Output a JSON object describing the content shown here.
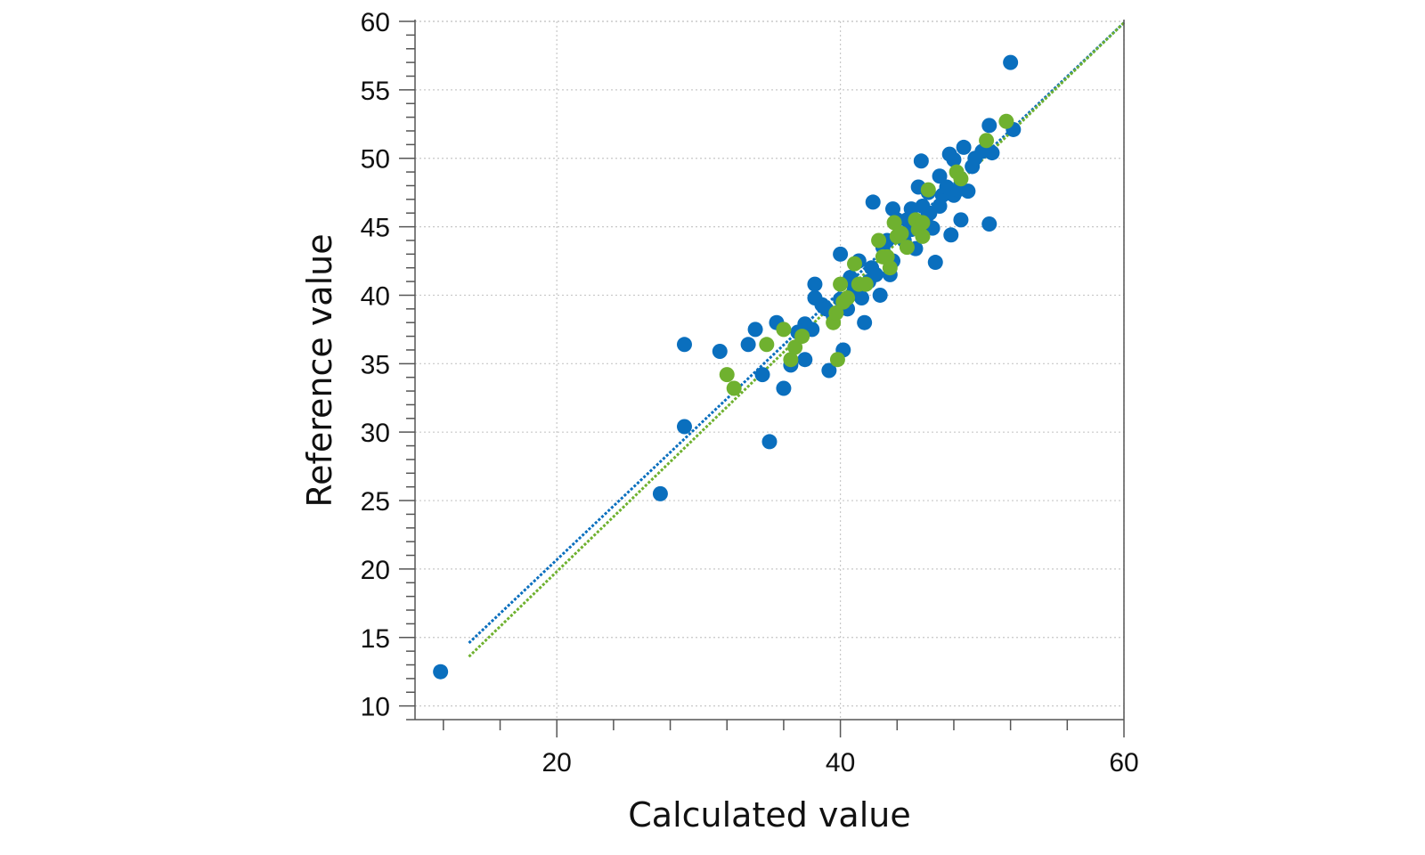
{
  "chart_data": {
    "type": "scatter",
    "xlabel": "Calculated value",
    "ylabel": "Reference value",
    "xlim": [
      10,
      60
    ],
    "ylim": [
      9,
      60
    ],
    "xticks": [
      20,
      40,
      60
    ],
    "yticks": [
      10,
      15,
      20,
      25,
      30,
      35,
      40,
      45,
      50,
      55,
      60
    ],
    "grid": true,
    "colors": {
      "calibration": "#0a6fbe",
      "validation": "#6fb12f"
    },
    "series": [
      {
        "color": "#0a6fbe",
        "points": [
          [
            11.8,
            12.5
          ],
          [
            27.3,
            25.5
          ],
          [
            29.0,
            36.4
          ],
          [
            29.0,
            30.4
          ],
          [
            31.5,
            35.9
          ],
          [
            33.5,
            36.4
          ],
          [
            34.0,
            37.5
          ],
          [
            34.5,
            34.2
          ],
          [
            35.0,
            29.3
          ],
          [
            35.5,
            38.0
          ],
          [
            36.0,
            33.2
          ],
          [
            36.5,
            34.9
          ],
          [
            37.0,
            37.3
          ],
          [
            37.5,
            35.3
          ],
          [
            37.5,
            37.9
          ],
          [
            38.0,
            37.5
          ],
          [
            38.2,
            39.8
          ],
          [
            38.2,
            40.8
          ],
          [
            38.7,
            39.3
          ],
          [
            39.0,
            39.0
          ],
          [
            39.2,
            34.5
          ],
          [
            39.5,
            38.5
          ],
          [
            40.0,
            39.7
          ],
          [
            40.0,
            43.0
          ],
          [
            40.2,
            36.0
          ],
          [
            40.5,
            39.0
          ],
          [
            40.7,
            41.3
          ],
          [
            41.0,
            40.5
          ],
          [
            41.3,
            42.5
          ],
          [
            41.5,
            39.8
          ],
          [
            41.7,
            38.0
          ],
          [
            42.0,
            41.0
          ],
          [
            42.2,
            42.0
          ],
          [
            42.3,
            46.8
          ],
          [
            42.5,
            41.5
          ],
          [
            42.8,
            40.0
          ],
          [
            43.0,
            43.5
          ],
          [
            43.3,
            44.0
          ],
          [
            43.5,
            41.5
          ],
          [
            43.7,
            42.5
          ],
          [
            43.7,
            46.3
          ],
          [
            44.0,
            45.5
          ],
          [
            44.2,
            44.3
          ],
          [
            44.5,
            44.0
          ],
          [
            44.7,
            45.5
          ],
          [
            45.0,
            44.8
          ],
          [
            45.0,
            46.3
          ],
          [
            45.3,
            43.4
          ],
          [
            45.5,
            47.9
          ],
          [
            45.7,
            49.8
          ],
          [
            45.8,
            46.5
          ],
          [
            46.0,
            45.5
          ],
          [
            46.2,
            47.5
          ],
          [
            46.3,
            46.0
          ],
          [
            46.5,
            44.9
          ],
          [
            46.7,
            42.4
          ],
          [
            47.0,
            46.5
          ],
          [
            47.0,
            48.7
          ],
          [
            47.2,
            47.3
          ],
          [
            47.5,
            47.9
          ],
          [
            47.7,
            50.3
          ],
          [
            47.8,
            44.4
          ],
          [
            48.0,
            47.3
          ],
          [
            48.0,
            49.9
          ],
          [
            48.3,
            47.7
          ],
          [
            48.5,
            45.5
          ],
          [
            48.7,
            50.8
          ],
          [
            49.0,
            47.6
          ],
          [
            49.3,
            49.4
          ],
          [
            49.5,
            50.0
          ],
          [
            50.0,
            50.5
          ],
          [
            50.5,
            45.2
          ],
          [
            50.5,
            52.4
          ],
          [
            50.7,
            50.4
          ],
          [
            52.0,
            57.0
          ],
          [
            52.2,
            52.1
          ]
        ]
      },
      {
        "color": "#6fb12f",
        "points": [
          [
            32.0,
            34.2
          ],
          [
            32.5,
            33.2
          ],
          [
            34.8,
            36.4
          ],
          [
            36.0,
            37.5
          ],
          [
            36.5,
            35.3
          ],
          [
            36.8,
            36.2
          ],
          [
            37.3,
            37.0
          ],
          [
            39.5,
            38.0
          ],
          [
            39.7,
            38.7
          ],
          [
            39.8,
            35.3
          ],
          [
            40.0,
            40.8
          ],
          [
            40.2,
            39.5
          ],
          [
            40.5,
            39.8
          ],
          [
            41.0,
            42.3
          ],
          [
            41.3,
            40.8
          ],
          [
            41.8,
            40.8
          ],
          [
            42.7,
            44.0
          ],
          [
            43.0,
            42.8
          ],
          [
            43.3,
            42.8
          ],
          [
            43.5,
            42.0
          ],
          [
            43.8,
            45.3
          ],
          [
            44.0,
            44.3
          ],
          [
            44.3,
            44.5
          ],
          [
            44.7,
            43.5
          ],
          [
            45.3,
            45.5
          ],
          [
            45.5,
            44.8
          ],
          [
            45.8,
            44.3
          ],
          [
            45.8,
            45.3
          ],
          [
            46.2,
            47.7
          ],
          [
            48.2,
            49.0
          ],
          [
            48.5,
            48.5
          ],
          [
            50.3,
            51.3
          ],
          [
            51.7,
            52.7
          ]
        ]
      }
    ],
    "fit_lines": [
      {
        "color": "#0a6fbe",
        "x": [
          13.8,
          60.0
        ],
        "y": [
          14.6,
          59.9
        ]
      },
      {
        "color": "#6fb12f",
        "x": [
          13.8,
          60.0
        ],
        "y": [
          13.6,
          59.9
        ]
      }
    ]
  }
}
